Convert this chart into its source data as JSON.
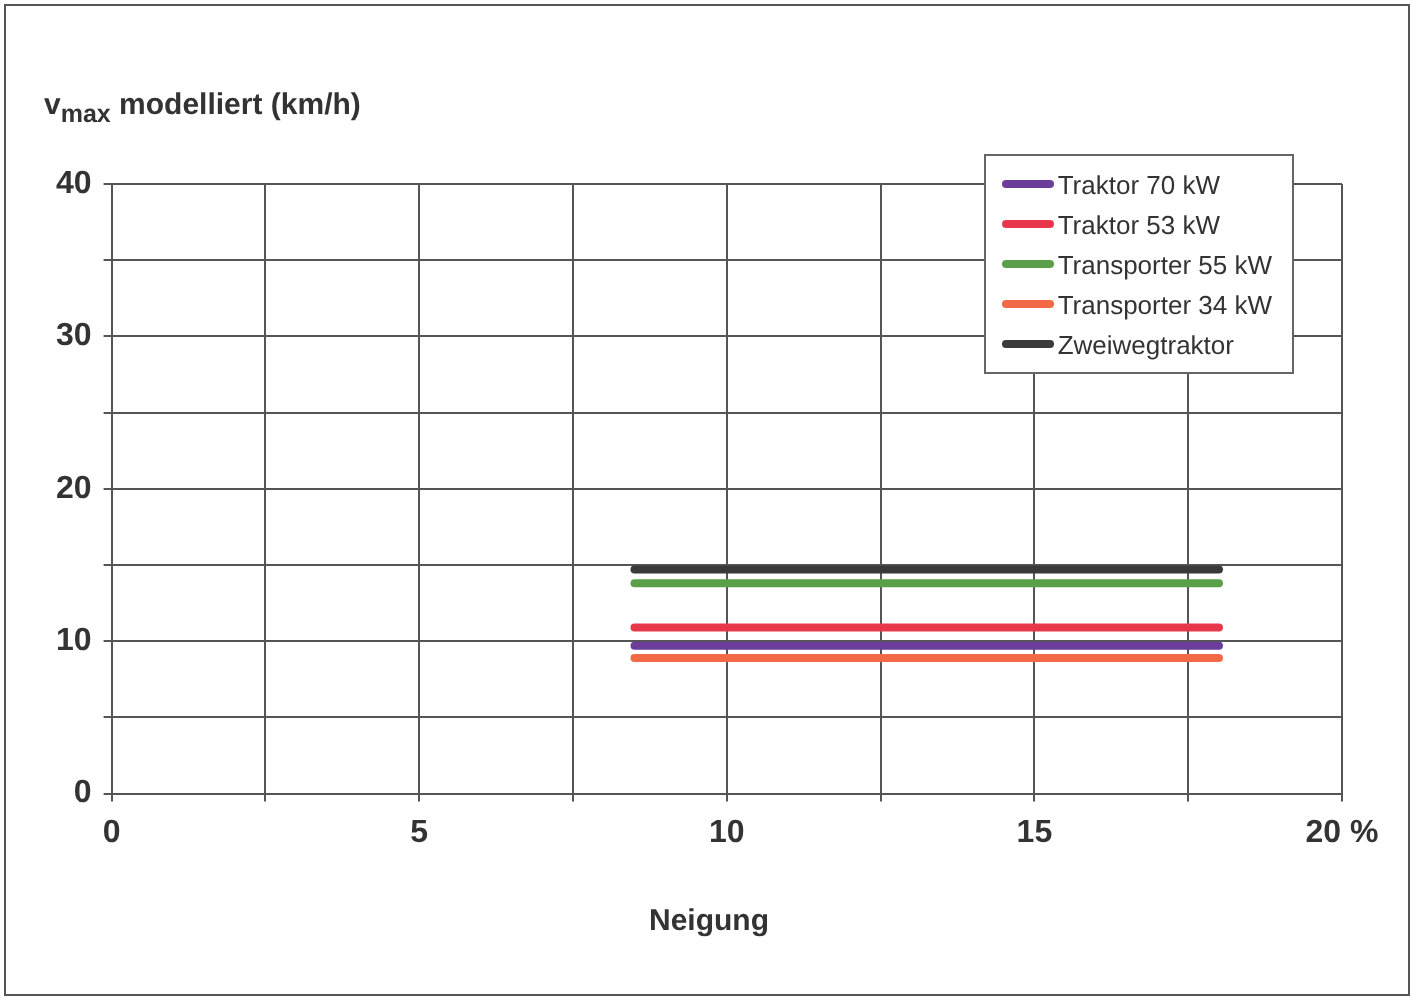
{
  "chart_data": {
    "type": "line",
    "ylabel": "v$_{max}$ modelliert (km/h)",
    "xlabel": "Neigung",
    "x": [
      8.5,
      18
    ],
    "xlim": [
      0,
      20
    ],
    "xticks": [
      0,
      {
        "value": 2.5,
        "label": null
      },
      5,
      {
        "value": 7.5,
        "label": null
      },
      10,
      {
        "value": 12.5,
        "label": null
      },
      15,
      {
        "value": 17.5,
        "label": null
      },
      {
        "value": 20,
        "label": "20 %"
      }
    ],
    "ylim": [
      0,
      40
    ],
    "yticks": [
      0,
      {
        "value": 5,
        "label": null
      },
      10,
      {
        "value": 15,
        "label": null
      },
      20,
      {
        "value": 25,
        "label": null
      },
      30,
      {
        "value": 35,
        "label": null
      },
      40
    ],
    "grid": true,
    "legend": "top right",
    "marker": "none",
    "line_style": "solid",
    "series": [
      {
        "name": "Traktor 70 kW",
        "color": "#6a3d9a",
        "values": [
          9.7,
          9.7
        ]
      },
      {
        "name": "Traktor 53 kW",
        "color": "#e8364a",
        "values": [
          10.9,
          10.9
        ]
      },
      {
        "name": "Transporter 55 kW",
        "color": "#5aa04a",
        "values": [
          13.8,
          13.8
        ]
      },
      {
        "name": "Transporter 34 kW",
        "color": "#f26a45",
        "values": [
          8.9,
          8.9
        ]
      },
      {
        "name": "Zweiwegtraktor",
        "color": "#3a3a3a",
        "values": [
          14.7,
          14.7
        ]
      }
    ]
  }
}
